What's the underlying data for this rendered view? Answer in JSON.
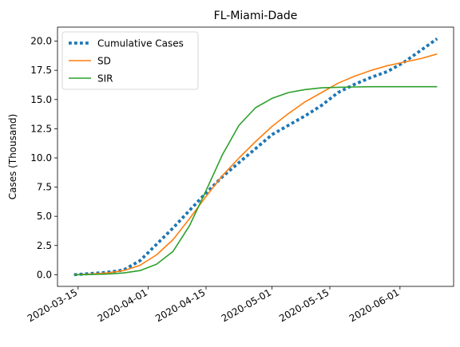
{
  "chart_data": {
    "type": "line",
    "title": "FL-Miami-Dade",
    "xlabel": "",
    "ylabel": "Cases (Thousand)",
    "x_axis": {
      "kind": "date",
      "range": [
        "2020-03-10",
        "2020-06-14"
      ],
      "ticks": [
        "2020-03-15",
        "2020-04-01",
        "2020-04-15",
        "2020-05-01",
        "2020-05-15",
        "2020-06-01"
      ]
    },
    "y_axis": {
      "range": [
        -1.0,
        21.2
      ],
      "ticks": [
        "0.0",
        "2.5",
        "5.0",
        "7.5",
        "10.0",
        "12.5",
        "15.0",
        "17.5",
        "20.0"
      ]
    },
    "grid": false,
    "legend": {
      "placement": "top-left"
    },
    "series": [
      {
        "name": "Cumulative Cases",
        "color": "#1f77b4",
        "style": "dotted",
        "points": [
          [
            "2020-03-14",
            0.0
          ],
          [
            "2020-03-18",
            0.1
          ],
          [
            "2020-03-22",
            0.2
          ],
          [
            "2020-03-26",
            0.4
          ],
          [
            "2020-03-30",
            1.2
          ],
          [
            "2020-04-03",
            2.6
          ],
          [
            "2020-04-07",
            4.0
          ],
          [
            "2020-04-11",
            5.5
          ],
          [
            "2020-04-15",
            7.0
          ],
          [
            "2020-04-19",
            8.4
          ],
          [
            "2020-04-23",
            9.6
          ],
          [
            "2020-04-27",
            10.8
          ],
          [
            "2020-05-01",
            12.0
          ],
          [
            "2020-05-05",
            12.8
          ],
          [
            "2020-05-09",
            13.6
          ],
          [
            "2020-05-13",
            14.5
          ],
          [
            "2020-05-17",
            15.6
          ],
          [
            "2020-05-21",
            16.3
          ],
          [
            "2020-05-25",
            16.9
          ],
          [
            "2020-05-29",
            17.4
          ],
          [
            "2020-06-02",
            18.2
          ],
          [
            "2020-06-06",
            19.2
          ],
          [
            "2020-06-10",
            20.2
          ]
        ]
      },
      {
        "name": "SD",
        "color": "#ff7f0e",
        "style": "solid",
        "points": [
          [
            "2020-03-14",
            0.0
          ],
          [
            "2020-03-18",
            0.05
          ],
          [
            "2020-03-22",
            0.15
          ],
          [
            "2020-03-26",
            0.35
          ],
          [
            "2020-03-30",
            0.8
          ],
          [
            "2020-04-03",
            1.7
          ],
          [
            "2020-04-07",
            3.0
          ],
          [
            "2020-04-11",
            4.8
          ],
          [
            "2020-04-15",
            6.7
          ],
          [
            "2020-04-19",
            8.5
          ],
          [
            "2020-04-23",
            10.0
          ],
          [
            "2020-04-27",
            11.4
          ],
          [
            "2020-05-01",
            12.7
          ],
          [
            "2020-05-05",
            13.8
          ],
          [
            "2020-05-09",
            14.8
          ],
          [
            "2020-05-13",
            15.6
          ],
          [
            "2020-05-17",
            16.4
          ],
          [
            "2020-05-21",
            17.0
          ],
          [
            "2020-05-25",
            17.5
          ],
          [
            "2020-05-29",
            17.9
          ],
          [
            "2020-06-02",
            18.2
          ],
          [
            "2020-06-06",
            18.5
          ],
          [
            "2020-06-10",
            18.9
          ]
        ]
      },
      {
        "name": "SIR",
        "color": "#2ca02c",
        "style": "solid",
        "points": [
          [
            "2020-03-14",
            0.0
          ],
          [
            "2020-03-18",
            0.02
          ],
          [
            "2020-03-22",
            0.05
          ],
          [
            "2020-03-26",
            0.15
          ],
          [
            "2020-03-30",
            0.35
          ],
          [
            "2020-04-03",
            0.9
          ],
          [
            "2020-04-07",
            2.0
          ],
          [
            "2020-04-11",
            4.2
          ],
          [
            "2020-04-15",
            7.2
          ],
          [
            "2020-04-19",
            10.3
          ],
          [
            "2020-04-23",
            12.8
          ],
          [
            "2020-04-27",
            14.3
          ],
          [
            "2020-05-01",
            15.1
          ],
          [
            "2020-05-05",
            15.6
          ],
          [
            "2020-05-09",
            15.85
          ],
          [
            "2020-05-13",
            16.0
          ],
          [
            "2020-05-17",
            16.05
          ],
          [
            "2020-05-21",
            16.08
          ],
          [
            "2020-05-25",
            16.1
          ],
          [
            "2020-05-29",
            16.1
          ],
          [
            "2020-06-02",
            16.1
          ],
          [
            "2020-06-06",
            16.1
          ],
          [
            "2020-06-10",
            16.1
          ]
        ]
      }
    ]
  }
}
